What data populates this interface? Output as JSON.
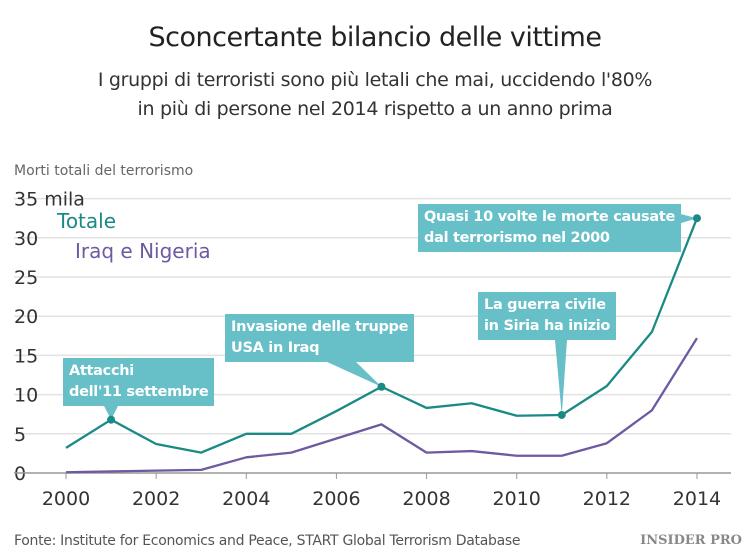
{
  "title": "Sconcertante bilancio delle vittime",
  "subtitle": [
    "I gruppi di terroristi sono più letali che mai, uccidendo l'80%",
    "in più di persone nel 2014 rispetto a un anno prima"
  ],
  "source": "Fonte: Institute for Economics and Peace, START Global Terrorism Database",
  "logo": "INSIDER PRO",
  "chart_data": {
    "type": "line",
    "ylabel": "Morti totali del terrorismo",
    "x": [
      2000,
      2001,
      2002,
      2003,
      2004,
      2005,
      2006,
      2007,
      2008,
      2009,
      2010,
      2011,
      2012,
      2013,
      2014
    ],
    "xticks": [
      "2000",
      "2002",
      "2004",
      "2006",
      "2008",
      "2010",
      "2012",
      "2014"
    ],
    "yticks": [
      "0",
      "5",
      "10",
      "15",
      "20",
      "25",
      "30",
      "35 mila"
    ],
    "ylim": [
      0,
      35
    ],
    "grid": true,
    "series": [
      {
        "name": "Totale",
        "color": "#1a8a85",
        "values": [
          3.2,
          6.8,
          3.7,
          2.6,
          5.0,
          5.0,
          7.9,
          11.0,
          8.3,
          8.9,
          7.3,
          7.4,
          11.1,
          18.0,
          32.5
        ]
      },
      {
        "name": "Iraq e Nigeria",
        "color": "#6e5aa0",
        "values": [
          0.1,
          0.2,
          0.3,
          0.4,
          2.0,
          2.6,
          4.4,
          6.2,
          2.6,
          2.8,
          2.2,
          2.2,
          3.8,
          8.0,
          17.2
        ]
      }
    ],
    "annotations": [
      {
        "year": 2001,
        "text": [
          "Attacchi",
          "dell'11 settembre"
        ]
      },
      {
        "year": 2007,
        "text": [
          "Invasione delle truppe",
          "USA in Iraq"
        ]
      },
      {
        "year": 2011,
        "text": [
          "La guerra civile",
          "in Siria ha inizio"
        ]
      },
      {
        "year": 2014,
        "text": [
          "Quasi 10 volte le morte causate",
          "dal terrorismo nel 2000"
        ]
      }
    ]
  }
}
